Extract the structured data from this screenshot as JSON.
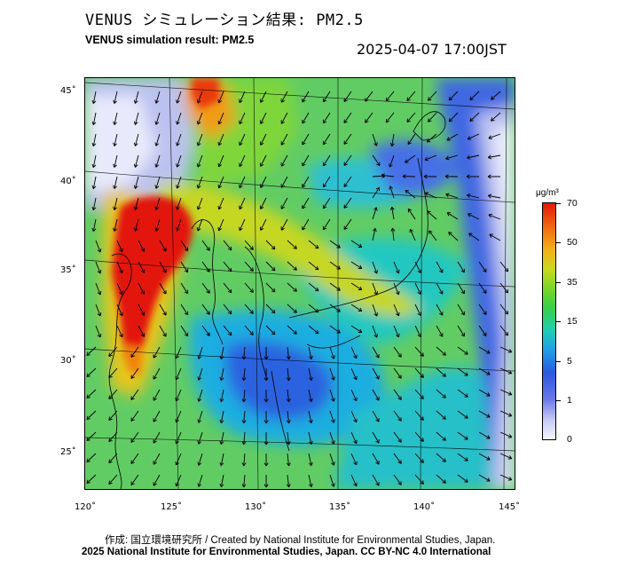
{
  "header": {
    "title_jp": "VENUS シミュレーション結果: PM2.5",
    "title_en": "VENUS simulation result: PM2.5",
    "timestamp": "2025-04-07 17:00JST"
  },
  "map": {
    "lat_labels": [
      "45˚",
      "40˚",
      "35˚",
      "30˚",
      "25˚"
    ],
    "lon_labels": [
      "120˚",
      "125˚",
      "130˚",
      "135˚",
      "140˚",
      "145˚"
    ]
  },
  "colorbar": {
    "unit": "μg/m³",
    "labels": [
      "70",
      "50",
      "35",
      "15",
      "5",
      "1",
      "0"
    ]
  },
  "footer": {
    "credit_jp": "作成: 国立環境研究所 / Created by National Institute for Environmental Studies, Japan.",
    "copyright": "2025 National Institute for Environmental Studies, Japan. CC BY-NC 4.0 International"
  },
  "colors": {
    "high": "#e01a0a",
    "mid": "#39d046",
    "low": "#2b59e0",
    "clean": "#f5f5ff"
  }
}
